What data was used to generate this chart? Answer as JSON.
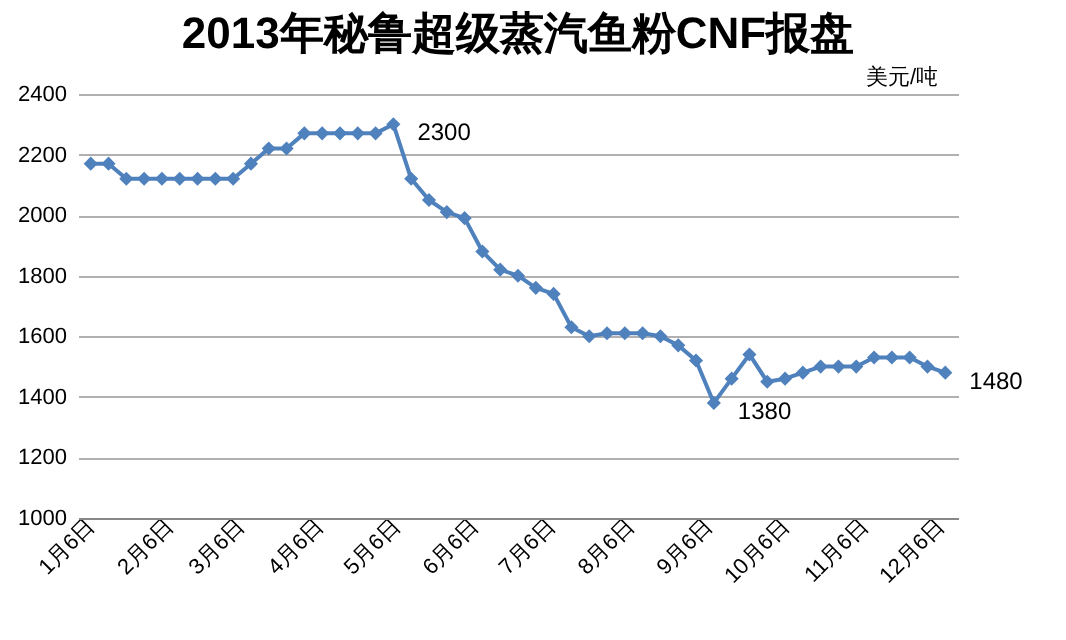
{
  "chart_data": {
    "type": "line",
    "title": "2013年秘鲁超级蒸汽鱼粉CNF报盘",
    "x": [
      "--01-06",
      "--01-13",
      "--01-20",
      "--01-27",
      "--02-03",
      "--02-10",
      "--02-17",
      "--02-24",
      "--03-03",
      "--03-10",
      "--03-17",
      "--03-24",
      "--03-31",
      "--04-07",
      "--04-14",
      "--04-21",
      "--04-28",
      "--05-05",
      "--05-12",
      "--05-19",
      "--05-26",
      "--06-02",
      "--06-09",
      "--06-16",
      "--06-23",
      "--06-30",
      "--07-07",
      "--07-14",
      "--07-21",
      "--07-28",
      "--08-04",
      "--08-11",
      "--08-18",
      "--08-25",
      "--09-01",
      "--09-08",
      "--09-15",
      "--09-22",
      "--09-29",
      "--10-06",
      "--10-13",
      "--10-20",
      "--10-27",
      "--11-03",
      "--11-10",
      "--11-17",
      "--11-24",
      "--12-01",
      "--12-08"
    ],
    "series": [
      {
        "color": "#4f81bd",
        "values": [
          2170,
          2170,
          2120,
          2120,
          2120,
          2120,
          2120,
          2120,
          2120,
          2170,
          2220,
          2220,
          2270,
          2270,
          2270,
          2270,
          2270,
          2300,
          2120,
          2050,
          2010,
          1990,
          1880,
          1820,
          1800,
          1760,
          1740,
          1630,
          1600,
          1610,
          1610,
          1610,
          1600,
          1570,
          1520,
          1380,
          1460,
          1540,
          1450,
          1460,
          1480,
          1500,
          1500,
          1500,
          1530,
          1530,
          1530,
          1500,
          1480
        ],
        "value_labels": [
          null,
          null,
          null,
          null,
          null,
          null,
          null,
          null,
          null,
          null,
          null,
          null,
          null,
          null,
          null,
          null,
          null,
          "2300",
          null,
          null,
          null,
          null,
          null,
          null,
          null,
          null,
          null,
          null,
          null,
          null,
          null,
          null,
          null,
          null,
          null,
          "1380",
          null,
          null,
          null,
          null,
          null,
          null,
          null,
          null,
          null,
          null,
          null,
          null,
          "1480"
        ]
      }
    ],
    "ylim": [
      1000,
      2400
    ],
    "yticks": [
      1000,
      1200,
      1400,
      1600,
      1800,
      2000,
      2200,
      2400
    ],
    "xlim": [
      "--01-01",
      "--12-13"
    ],
    "xticks": [
      {
        "value": "--01-06",
        "label": "1月6日"
      },
      {
        "value": "--02-06",
        "label": "2月6日"
      },
      {
        "value": "--03-06",
        "label": "3月6日"
      },
      {
        "value": "--04-06",
        "label": "4月6日"
      },
      {
        "value": "--05-06",
        "label": "5月6日"
      },
      {
        "value": "--06-06",
        "label": "6月6日"
      },
      {
        "value": "--07-06",
        "label": "7月6日"
      },
      {
        "value": "--08-06",
        "label": "8月6日"
      },
      {
        "value": "--09-06",
        "label": "9月6日"
      },
      {
        "value": "--10-06",
        "label": "10月6日"
      },
      {
        "value": "--11-06",
        "label": "11月6日"
      },
      {
        "value": "--12-06",
        "label": "12月6日"
      }
    ],
    "annotations": [
      "美元/吨"
    ],
    "grid": "y",
    "marker": "diamond",
    "line_style": "solid"
  }
}
